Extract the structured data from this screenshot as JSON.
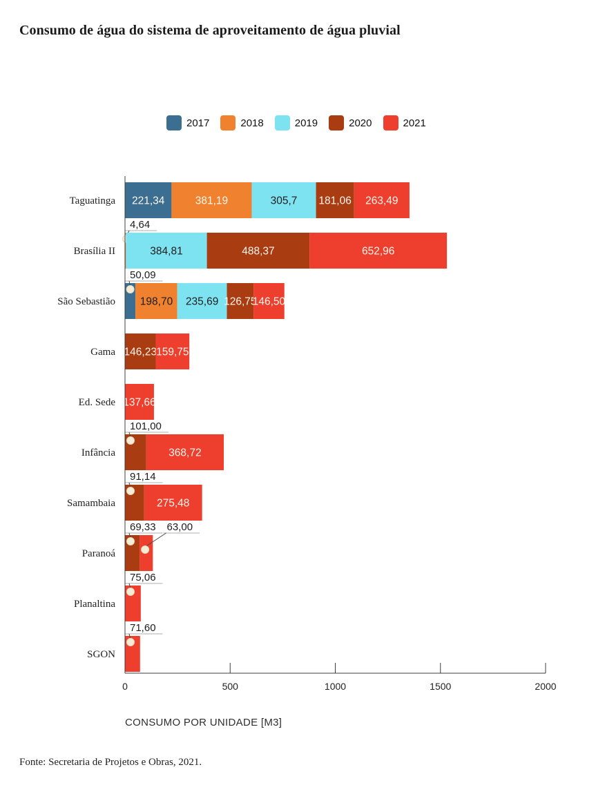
{
  "page": {
    "title": "Consumo de água do sistema de aproveitamento de água pluvial",
    "footer": "Fonte: Secretaria de Projetos e Obras, 2021."
  },
  "legend": [
    {
      "label": "2017",
      "color": "#3b6e90"
    },
    {
      "label": "2018",
      "color": "#f0822f"
    },
    {
      "label": "2019",
      "color": "#7de3f1"
    },
    {
      "label": "2020",
      "color": "#a93c10"
    },
    {
      "label": "2021",
      "color": "#ee3e2d"
    }
  ],
  "chart_data": {
    "type": "bar",
    "orientation": "horizontal",
    "stacked": true,
    "title": "Consumo de água do sistema de aproveitamento de água pluvial",
    "xlabel": "CONSUMO POR UNIDADE [M3]",
    "xlim": [
      0,
      2000
    ],
    "xticks": [
      "0",
      "500",
      "1000",
      "1500",
      "2000"
    ],
    "xtick_values": [
      0,
      500,
      1000,
      1500,
      2000
    ],
    "grid": false,
    "legend_position": "top",
    "series_names": [
      "2017",
      "2018",
      "2019",
      "2020",
      "2021"
    ],
    "series_colors": {
      "2017": "#3b6e90",
      "2018": "#f0822f",
      "2019": "#7de3f1",
      "2020": "#a93c10",
      "2021": "#ee3e2d"
    },
    "label_colors": {
      "light": "#fcf7ee",
      "dark": "#1c1c1c"
    },
    "categories": [
      "Taguatinga",
      "Brasília II",
      "São Sebastião",
      "Gama",
      "Ed. Sede",
      "Infância",
      "Samambaia",
      "Paranoá",
      "Planaltina",
      "SGON"
    ],
    "rows": [
      {
        "category": "Taguatinga",
        "segments": [
          {
            "series": "2017",
            "value": 221.34,
            "label": "221,34",
            "label_placement": "inside",
            "label_color": "light"
          },
          {
            "series": "2018",
            "value": 381.19,
            "label": "381,19",
            "label_placement": "inside",
            "label_color": "light"
          },
          {
            "series": "2019",
            "value": 305.7,
            "label": "305,7",
            "label_placement": "inside",
            "label_color": "dark"
          },
          {
            "series": "2020",
            "value": 181.06,
            "label": "181,06",
            "label_placement": "inside",
            "label_color": "light"
          },
          {
            "series": "2021",
            "value": 263.49,
            "label": "263,49",
            "label_placement": "inside",
            "label_color": "light"
          }
        ]
      },
      {
        "category": "Brasília II",
        "segments": [
          {
            "series": "2018",
            "value": 4.64,
            "label": "4,64",
            "label_placement": "callout"
          },
          {
            "series": "2019",
            "value": 384.81,
            "label": "384,81",
            "label_placement": "inside",
            "label_color": "dark"
          },
          {
            "series": "2020",
            "value": 488.37,
            "label": "488,37",
            "label_placement": "inside",
            "label_color": "light"
          },
          {
            "series": "2021",
            "value": 652.96,
            "label": "652,96",
            "label_placement": "inside",
            "label_color": "light"
          }
        ]
      },
      {
        "category": "São Sebastião",
        "segments": [
          {
            "series": "2017",
            "value": 50.09,
            "label": "50,09",
            "label_placement": "callout"
          },
          {
            "series": "2018",
            "value": 198.7,
            "label": "198,70",
            "label_placement": "inside",
            "label_color": "dark"
          },
          {
            "series": "2019",
            "value": 235.69,
            "label": "235,69",
            "label_placement": "inside",
            "label_color": "dark"
          },
          {
            "series": "2020",
            "value": 126.75,
            "label": "126,75",
            "label_placement": "inside",
            "label_color": "light"
          },
          {
            "series": "2021",
            "value": 146.5,
            "label": "146,50",
            "label_placement": "inside",
            "label_color": "light"
          }
        ]
      },
      {
        "category": "Gama",
        "segments": [
          {
            "series": "2020",
            "value": 146.23,
            "label": "146,23",
            "label_placement": "inside",
            "label_color": "light"
          },
          {
            "series": "2021",
            "value": 159.75,
            "label": "159,75",
            "label_placement": "inside",
            "label_color": "light"
          }
        ]
      },
      {
        "category": "Ed. Sede",
        "segments": [
          {
            "series": "2021",
            "value": 137.66,
            "label": "137,66",
            "label_placement": "inside",
            "label_color": "light"
          }
        ]
      },
      {
        "category": "Infância",
        "segments": [
          {
            "series": "2020",
            "value": 101.0,
            "label": "101,00",
            "label_placement": "callout"
          },
          {
            "series": "2021",
            "value": 368.72,
            "label": "368,72",
            "label_placement": "inside",
            "label_color": "light"
          }
        ]
      },
      {
        "category": "Samambaia",
        "segments": [
          {
            "series": "2020",
            "value": 91.14,
            "label": "91,14",
            "label_placement": "callout"
          },
          {
            "series": "2021",
            "value": 275.48,
            "label": "275,48",
            "label_placement": "inside",
            "label_color": "light"
          }
        ]
      },
      {
        "category": "Paranoá",
        "segments": [
          {
            "series": "2020",
            "value": 69.33,
            "label": "69,33",
            "label_placement": "callout"
          },
          {
            "series": "2021",
            "value": 63.0,
            "label": "63,00",
            "label_placement": "callout"
          }
        ]
      },
      {
        "category": "Planaltina",
        "segments": [
          {
            "series": "2021",
            "value": 75.06,
            "label": "75,06",
            "label_placement": "callout"
          }
        ]
      },
      {
        "category": "SGON",
        "segments": [
          {
            "series": "2021",
            "value": 71.6,
            "label": "71,60",
            "label_placement": "callout"
          }
        ]
      }
    ]
  }
}
